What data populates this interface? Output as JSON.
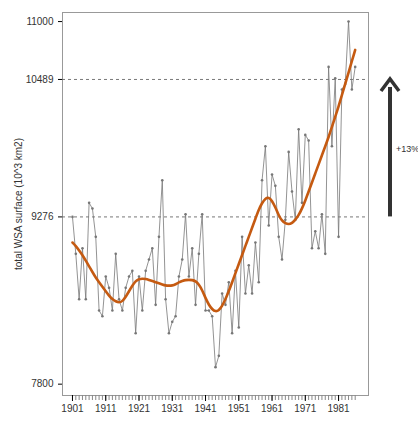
{
  "chart_data": {
    "type": "line",
    "y_label": "total WSA surface (10^3 km2)",
    "annotation": "+13%",
    "x": [
      1901,
      1902,
      1903,
      1904,
      1905,
      1906,
      1907,
      1908,
      1909,
      1910,
      1911,
      1912,
      1913,
      1914,
      1915,
      1916,
      1917,
      1918,
      1919,
      1920,
      1921,
      1922,
      1923,
      1924,
      1925,
      1926,
      1927,
      1928,
      1929,
      1930,
      1931,
      1932,
      1933,
      1934,
      1935,
      1936,
      1937,
      1938,
      1939,
      1940,
      1941,
      1942,
      1943,
      1944,
      1945,
      1946,
      1947,
      1948,
      1949,
      1950,
      1951,
      1952,
      1953,
      1954,
      1955,
      1956,
      1957,
      1958,
      1959,
      1960,
      1961,
      1962,
      1963,
      1964,
      1965,
      1966,
      1967,
      1968,
      1969,
      1970,
      1971,
      1972,
      1973,
      1974,
      1975,
      1976,
      1977,
      1978,
      1979,
      1980,
      1981,
      1982,
      1983,
      1984,
      1985,
      1986
    ],
    "series": [
      {
        "color": "#777777",
        "marker": "circle",
        "line_style": "solid",
        "values": [
          9276,
          8950,
          8550,
          9000,
          8550,
          9400,
          9350,
          9100,
          8450,
          8400,
          8750,
          8650,
          8450,
          8950,
          8550,
          8450,
          8650,
          8750,
          8800,
          8250,
          8750,
          8450,
          8800,
          8900,
          9000,
          8500,
          9100,
          9600,
          8550,
          8250,
          8350,
          8400,
          8750,
          8900,
          9300,
          8750,
          9000,
          8500,
          8950,
          9300,
          8450,
          8450,
          8400,
          7950,
          8050,
          8600,
          8500,
          8700,
          8250,
          8800,
          8300,
          9100,
          8600,
          8850,
          8600,
          9050,
          8700,
          9600,
          9900,
          9200,
          9650,
          9550,
          9100,
          8900,
          9250,
          9850,
          9500,
          9250,
          10050,
          9400,
          10000,
          9950,
          9000,
          9150,
          9000,
          9300,
          8950,
          10600,
          9900,
          10500,
          9100,
          10400,
          10450,
          11000,
          10400,
          10600
        ]
      },
      {
        "color": "#c55a11",
        "line_style": "solid",
        "values": [
          9050,
          9020,
          8980,
          8940,
          8890,
          8840,
          8790,
          8740,
          8700,
          8660,
          8620,
          8580,
          8550,
          8530,
          8520,
          8530,
          8570,
          8620,
          8670,
          8710,
          8730,
          8730,
          8730,
          8720,
          8710,
          8700,
          8690,
          8680,
          8670,
          8670,
          8670,
          8680,
          8700,
          8710,
          8720,
          8720,
          8720,
          8710,
          8680,
          8630,
          8560,
          8500,
          8460,
          8440,
          8450,
          8490,
          8550,
          8620,
          8700,
          8780,
          8860,
          8940,
          9020,
          9100,
          9180,
          9260,
          9340,
          9400,
          9440,
          9450,
          9420,
          9360,
          9290,
          9240,
          9220,
          9210,
          9220,
          9250,
          9290,
          9350,
          9420,
          9500,
          9580,
          9660,
          9740,
          9820,
          9900,
          9980,
          10070,
          10160,
          10250,
          10350,
          10450,
          10550,
          10650,
          10750
        ]
      }
    ],
    "hlines": [
      9276,
      10489
    ],
    "xlim": [
      1898,
      1990
    ],
    "xticks": [
      1901,
      1911,
      1921,
      1931,
      1941,
      1951,
      1961,
      1971,
      1981
    ],
    "ylim": [
      7700,
      11080
    ],
    "yticks": [
      7800,
      9276,
      10489,
      11000
    ],
    "grid": false
  }
}
